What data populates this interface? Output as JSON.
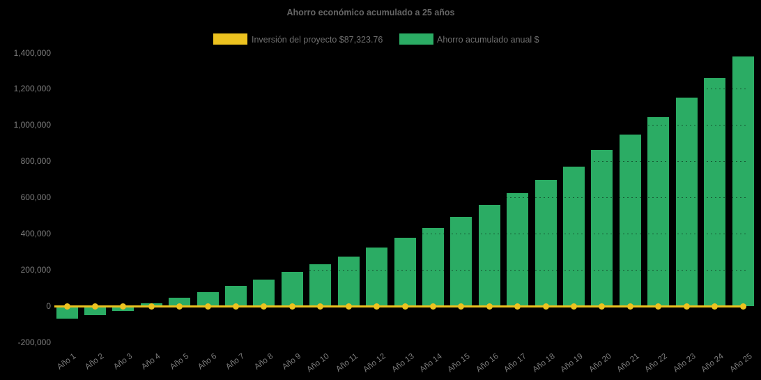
{
  "title": "Ahorro económico acumulado a 25 años",
  "legend": {
    "items": [
      {
        "label": "Inversión del proyecto $87,323.76",
        "color": "#ECC21F",
        "series_type": "line"
      },
      {
        "label": "Ahorro acumulado anual $",
        "color": "#2BAC64",
        "series_type": "bar"
      }
    ]
  },
  "colors": {
    "background": "#000000",
    "bar_green": "#2BAC64",
    "line_yellow": "#ECC21F",
    "axis_text": "#7E7E7E",
    "title_text": "#666666",
    "legend_text": "#6F6F6F"
  },
  "chart_data": {
    "type": "bar",
    "title": "Ahorro económico acumulado a 25 años",
    "categories": [
      "Año 1",
      "Año 2",
      "Año 3",
      "Año 4",
      "Año 5",
      "Año 6",
      "Año 7",
      "Año 8",
      "Año 9",
      "Año 10",
      "Año 11",
      "Año 12",
      "Año 13",
      "Año 14",
      "Año 15",
      "Año 16",
      "Año 17",
      "Año 18",
      "Año 19",
      "Año 20",
      "Año 21",
      "Año 22",
      "Año 23",
      "Año 24",
      "Año 25"
    ],
    "series": [
      {
        "name": "Ahorro acumulado anual $",
        "type": "bar",
        "color": "#2BAC64",
        "values": [
          -65000,
          -46000,
          -23000,
          15000,
          45000,
          78000,
          110000,
          148000,
          187000,
          230000,
          273000,
          325000,
          377000,
          431000,
          494000,
          557000,
          624000,
          697000,
          771000,
          861000,
          947000,
          1045000,
          1150000,
          1259000,
          1380000
        ]
      },
      {
        "name": "Inversión del proyecto $87,323.76",
        "type": "line-with-markers",
        "color": "#ECC21F",
        "constant_value": 0
      }
    ],
    "xlabel": "",
    "ylabel": "",
    "ylim": [
      -200000,
      1400000
    ],
    "ytick_step": 200000,
    "ytick_format": "comma-thousands",
    "grid": "faint dotted horizontal",
    "legend_position": "top"
  }
}
